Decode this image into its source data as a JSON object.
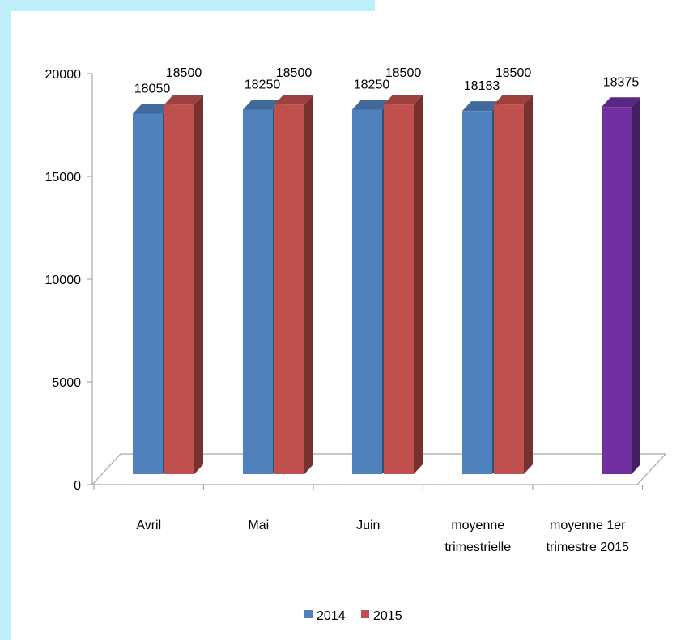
{
  "chart_data": {
    "type": "bar",
    "categories": [
      "Avril",
      "Mai",
      "Juin",
      "moyenne trimestrielle",
      "moyenne 1er trimestre 2015"
    ],
    "category_lines": [
      [
        "Avril"
      ],
      [
        "Mai"
      ],
      [
        "Juin"
      ],
      [
        "moyenne",
        "trimestrielle"
      ],
      [
        "moyenne 1er",
        "trimestre 2015"
      ]
    ],
    "series": [
      {
        "name": "2014",
        "color": "#4f81bd",
        "values": [
          18050,
          18250,
          18250,
          18183,
          null
        ]
      },
      {
        "name": "2015",
        "color": "#c0504d",
        "values": [
          18500,
          18500,
          18500,
          18500,
          null
        ]
      },
      {
        "name": "",
        "color": "#7030a0",
        "values": [
          null,
          null,
          null,
          null,
          18375
        ]
      }
    ],
    "ylim": [
      0,
      20000
    ],
    "yticks": [
      "0",
      "5000",
      "10000",
      "15000",
      "20000"
    ],
    "style": "3d-column",
    "legend": "bottom",
    "grid": false
  }
}
